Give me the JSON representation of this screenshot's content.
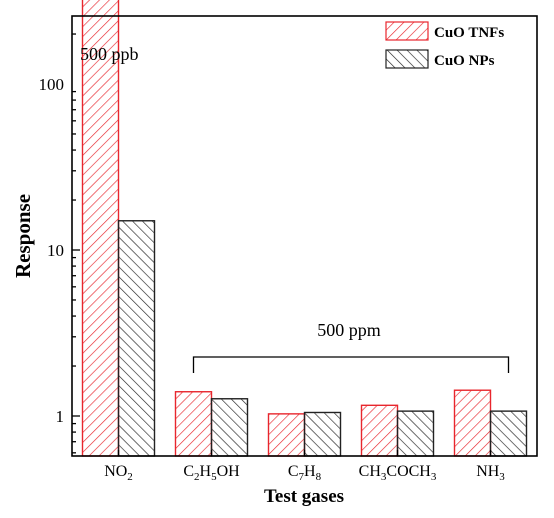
{
  "chart_data": {
    "type": "bar",
    "xlabel": "Test gases",
    "ylabel": "Response",
    "yscale": "log",
    "ylim": [
      0.5,
      1000
    ],
    "yticks": [
      1,
      10,
      100
    ],
    "ytick_labels": [
      "1",
      "10",
      "100"
    ],
    "categories": [
      {
        "base": "NO",
        "sub": "2",
        "parts": [
          [
            "NO",
            ""
          ],
          [
            "2",
            "sub"
          ]
        ]
      },
      {
        "base": "C2H5OH",
        "parts": [
          [
            "C",
            ""
          ],
          [
            "2",
            "sub"
          ],
          [
            "H",
            ""
          ],
          [
            "5",
            "sub"
          ],
          [
            "OH",
            ""
          ]
        ]
      },
      {
        "base": "C7H8",
        "parts": [
          [
            "C",
            ""
          ],
          [
            "7",
            "sub"
          ],
          [
            "H",
            ""
          ],
          [
            "8",
            "sub"
          ]
        ]
      },
      {
        "base": "CH3COCH3",
        "parts": [
          [
            "CH",
            ""
          ],
          [
            "3",
            "sub"
          ],
          [
            "COCH",
            ""
          ],
          [
            "3",
            "sub"
          ]
        ]
      },
      {
        "base": "NH3",
        "parts": [
          [
            "NH",
            ""
          ],
          [
            "3",
            "sub"
          ]
        ]
      }
    ],
    "series": [
      {
        "name": "CuO TNFs",
        "color": "#e8262d",
        "values": [
          400,
          1.4,
          1.03,
          1.16,
          1.43
        ]
      },
      {
        "name": "CuO NPs",
        "color": "#222222",
        "values": [
          15,
          1.27,
          1.05,
          1.07,
          1.07
        ]
      }
    ],
    "legend_position": "top-right",
    "annotations": {
      "ppb_label": "500 ppb",
      "ppm_label": "500 ppm"
    }
  }
}
